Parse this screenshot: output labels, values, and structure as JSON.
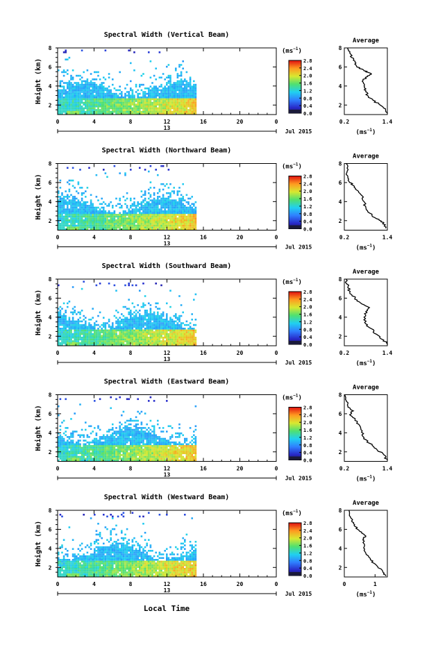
{
  "figure": {
    "xlabel": "Local Time",
    "date_label": "Jul 2015",
    "colorbar_unit": "(ms",
    "colorbar_unit_exp": "−1",
    "colorbar_unit_close": ")",
    "avg_title": "Average",
    "avg_unit": "(ms",
    "avg_unit_exp": "−1",
    "avg_unit_close": ")",
    "ylabel": "Height (km)"
  },
  "chart_data": [
    {
      "type": "heatmap",
      "title": "Spectral Width (Vertical Beam)",
      "ylabel": "Height (km)",
      "x_ticks": [
        "0",
        "4",
        "8",
        "12",
        "16",
        "20",
        "0"
      ],
      "secondary_x_label": "13",
      "xlim": [
        0,
        24
      ],
      "ylim": [
        1,
        8
      ],
      "y_ticks": [
        "2",
        "4",
        "6",
        "8"
      ],
      "data_extent_hours": [
        0,
        15.2
      ],
      "colorbar": {
        "ticks": [
          "0.0",
          "0.4",
          "0.8",
          "1.2",
          "1.6",
          "2.0",
          "2.4",
          "2.8"
        ],
        "range": [
          0,
          2.8
        ]
      },
      "average_profile": {
        "x_ticks": [
          "0.2",
          "1.4"
        ],
        "xlim": [
          0.2,
          1.4
        ],
        "ylim": [
          1,
          8
        ],
        "y_ticks": [
          "2",
          "4",
          "6",
          "8"
        ],
        "points": [
          [
            1.4,
            1.1
          ],
          [
            1.35,
            1.5
          ],
          [
            1.2,
            2.0
          ],
          [
            1.0,
            2.5
          ],
          [
            0.85,
            3.0
          ],
          [
            0.8,
            3.5
          ],
          [
            0.75,
            4.0
          ],
          [
            0.7,
            4.5
          ],
          [
            0.85,
            5.0
          ],
          [
            0.95,
            5.3
          ],
          [
            0.75,
            5.6
          ],
          [
            0.55,
            6.0
          ],
          [
            0.5,
            6.5
          ],
          [
            0.4,
            7.0
          ],
          [
            0.35,
            7.5
          ],
          [
            0.3,
            8.0
          ]
        ]
      }
    },
    {
      "type": "heatmap",
      "title": "Spectral Width (Northward Beam)",
      "ylabel": "Height (km)",
      "x_ticks": [
        "0",
        "4",
        "8",
        "12",
        "16",
        "20",
        "0"
      ],
      "secondary_x_label": "13",
      "xlim": [
        0,
        24
      ],
      "ylim": [
        1,
        8
      ],
      "y_ticks": [
        "2",
        "4",
        "6",
        "8"
      ],
      "data_extent_hours": [
        0,
        15.2
      ],
      "colorbar": {
        "ticks": [
          "0.0",
          "0.4",
          "0.8",
          "1.2",
          "1.6",
          "2.0",
          "2.4",
          "2.8"
        ],
        "range": [
          0,
          2.8
        ]
      },
      "average_profile": {
        "x_ticks": [
          "0.2",
          "1.4"
        ],
        "xlim": [
          0.2,
          1.4
        ],
        "ylim": [
          1,
          8
        ],
        "y_ticks": [
          "2",
          "4",
          "6",
          "8"
        ],
        "points": [
          [
            1.35,
            1.2
          ],
          [
            1.3,
            1.8
          ],
          [
            1.1,
            2.2
          ],
          [
            0.9,
            2.8
          ],
          [
            0.8,
            3.4
          ],
          [
            0.75,
            4.0
          ],
          [
            0.7,
            4.6
          ],
          [
            0.55,
            5.2
          ],
          [
            0.45,
            5.7
          ],
          [
            0.35,
            6.0
          ],
          [
            0.3,
            6.6
          ],
          [
            0.28,
            7.2
          ],
          [
            0.25,
            8.0
          ]
        ]
      }
    },
    {
      "type": "heatmap",
      "title": "Spectral Width (Southward Beam)",
      "ylabel": "Height (km)",
      "x_ticks": [
        "0",
        "4",
        "8",
        "12",
        "16",
        "20",
        "0"
      ],
      "secondary_x_label": "13",
      "xlim": [
        0,
        24
      ],
      "ylim": [
        1,
        8
      ],
      "y_ticks": [
        "2",
        "4",
        "6",
        "8"
      ],
      "data_extent_hours": [
        0,
        15.2
      ],
      "colorbar": {
        "ticks": [
          "0.0",
          "0.4",
          "0.8",
          "1.2",
          "1.6",
          "2.0",
          "2.4",
          "2.8"
        ],
        "range": [
          0,
          2.8
        ]
      },
      "average_profile": {
        "x_ticks": [
          "0.2",
          "1.4"
        ],
        "xlim": [
          0.2,
          1.4
        ],
        "ylim": [
          1,
          8
        ],
        "y_ticks": [
          "2",
          "4",
          "6",
          "8"
        ],
        "points": [
          [
            1.4,
            1.1
          ],
          [
            1.3,
            1.6
          ],
          [
            1.1,
            2.2
          ],
          [
            0.95,
            2.8
          ],
          [
            0.8,
            3.3
          ],
          [
            0.75,
            4.0
          ],
          [
            0.8,
            4.6
          ],
          [
            0.9,
            5.0
          ],
          [
            0.65,
            5.5
          ],
          [
            0.5,
            6.0
          ],
          [
            0.35,
            6.6
          ],
          [
            0.3,
            7.2
          ],
          [
            0.25,
            8.0
          ]
        ]
      }
    },
    {
      "type": "heatmap",
      "title": "Spectral Width (Eastward Beam)",
      "ylabel": "Height (km)",
      "x_ticks": [
        "0",
        "4",
        "8",
        "12",
        "16",
        "20",
        "0"
      ],
      "secondary_x_label": "13",
      "xlim": [
        0,
        24
      ],
      "ylim": [
        1,
        8
      ],
      "y_ticks": [
        "2",
        "4",
        "6",
        "8"
      ],
      "data_extent_hours": [
        0,
        15.2
      ],
      "colorbar": {
        "ticks": [
          "0.0",
          "0.4",
          "0.8",
          "1.2",
          "1.6",
          "2.0",
          "2.4",
          "2.8"
        ],
        "range": [
          0,
          2.8
        ]
      },
      "average_profile": {
        "x_ticks": [
          "0.2",
          "1.4"
        ],
        "xlim": [
          0.2,
          1.4
        ],
        "ylim": [
          1,
          8
        ],
        "y_ticks": [
          "2",
          "4",
          "6",
          "8"
        ],
        "points": [
          [
            1.4,
            1.1
          ],
          [
            1.3,
            1.7
          ],
          [
            1.1,
            2.3
          ],
          [
            0.9,
            2.9
          ],
          [
            0.75,
            3.5
          ],
          [
            0.7,
            4.2
          ],
          [
            0.6,
            4.9
          ],
          [
            0.5,
            5.4
          ],
          [
            0.35,
            5.9
          ],
          [
            0.45,
            6.3
          ],
          [
            0.3,
            6.8
          ],
          [
            0.25,
            7.4
          ],
          [
            0.22,
            8.0
          ]
        ]
      }
    },
    {
      "type": "heatmap",
      "title": "Spectral Width (Westward Beam)",
      "ylabel": "Height (km)",
      "x_ticks": [
        "0",
        "4",
        "8",
        "12",
        "16",
        "20",
        "0"
      ],
      "secondary_x_label": "13",
      "xlim": [
        0,
        24
      ],
      "ylim": [
        1,
        8
      ],
      "y_ticks": [
        "2",
        "4",
        "6",
        "8"
      ],
      "data_extent_hours": [
        0,
        15.2
      ],
      "colorbar": {
        "ticks": [
          "0.0",
          "0.4",
          "0.8",
          "1.2",
          "1.6",
          "2.0",
          "2.4",
          "2.8"
        ],
        "range": [
          0,
          2.8
        ]
      },
      "average_profile": {
        "x_ticks": [
          "0",
          "1"
        ],
        "xlim": [
          0,
          1.4
        ],
        "ylim": [
          1,
          8
        ],
        "y_ticks": [
          "2",
          "4",
          "6",
          "8"
        ],
        "points": [
          [
            1.35,
            1.1
          ],
          [
            1.25,
            1.6
          ],
          [
            1.05,
            2.2
          ],
          [
            0.85,
            2.8
          ],
          [
            0.7,
            3.5
          ],
          [
            0.65,
            4.2
          ],
          [
            0.6,
            4.9
          ],
          [
            0.7,
            5.3
          ],
          [
            0.5,
            5.8
          ],
          [
            0.35,
            6.3
          ],
          [
            0.25,
            6.8
          ],
          [
            0.2,
            7.3
          ],
          [
            0.15,
            8.0
          ]
        ]
      }
    }
  ]
}
